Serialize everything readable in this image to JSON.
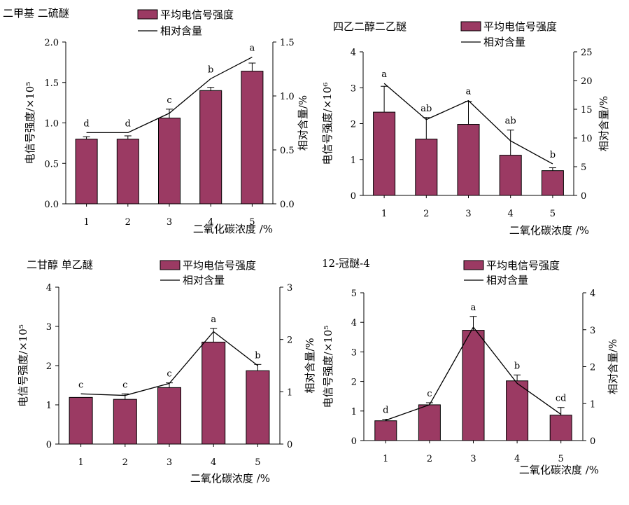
{
  "legend_bar_label": "平均电信号强度",
  "legend_line_label": "相对含量",
  "colors": {
    "bar": "#9b3a63",
    "line": "#000000"
  },
  "chart_data": [
    {
      "type": "bar",
      "title": "二甲基 二硫醚",
      "categories": [
        "1",
        "2",
        "3",
        "4",
        "5"
      ],
      "ylabel": "电信号强度/×10⁵",
      "y2label": "相对含量/%",
      "xlabel": "二氧化碳浓度 /%",
      "ylim": [
        0,
        2.0
      ],
      "yticks": [
        0,
        0.5,
        1.0,
        1.5,
        2.0
      ],
      "ytick_labels": [
        "0.0",
        "0.5",
        "1.0",
        "1.5",
        "2.0"
      ],
      "y2lim": [
        0,
        1.5
      ],
      "y2ticks": [
        0,
        0.5,
        1.0,
        1.5
      ],
      "y2tick_labels": [
        "0.0",
        "0.5",
        "1.0",
        "1.5"
      ],
      "series": [
        {
          "kind": "bar",
          "axis": "left",
          "values": [
            0.8,
            0.8,
            1.06,
            1.4,
            1.64
          ],
          "errors": [
            0.03,
            0.04,
            0.11,
            0.04,
            0.1
          ]
        },
        {
          "kind": "line",
          "axis": "right",
          "values": [
            0.66,
            0.66,
            0.84,
            1.16,
            1.36
          ]
        }
      ],
      "significance": [
        "d",
        "d",
        "c",
        "b",
        "a"
      ]
    },
    {
      "type": "bar",
      "title": "四乙二醇二乙醚",
      "categories": [
        "1",
        "2",
        "3",
        "4",
        "5"
      ],
      "ylabel": "电信号强度/×10⁶",
      "y2label": "相对含量/%",
      "xlabel": "二氧化碳浓度 /%",
      "ylim": [
        0,
        4
      ],
      "yticks": [
        0,
        1,
        2,
        3,
        4
      ],
      "ytick_labels": [
        "0",
        "1",
        "2",
        "3",
        "4"
      ],
      "y2lim": [
        0,
        25
      ],
      "y2ticks": [
        0,
        5,
        10,
        15,
        20,
        25
      ],
      "y2tick_labels": [
        "0",
        "5",
        "10",
        "15",
        "20",
        "25"
      ],
      "series": [
        {
          "kind": "bar",
          "axis": "left",
          "values": [
            2.32,
            1.57,
            1.98,
            1.12,
            0.69
          ],
          "errors": [
            0.72,
            0.6,
            0.64,
            0.7,
            0.08
          ]
        },
        {
          "kind": "line",
          "axis": "right",
          "values": [
            19.5,
            13.2,
            16.5,
            9.5,
            5.5
          ]
        }
      ],
      "significance": [
        "a",
        "ab",
        "a",
        "ab",
        "b"
      ]
    },
    {
      "type": "bar",
      "title": "二甘醇 单乙醚",
      "categories": [
        "1",
        "2",
        "3",
        "4",
        "5"
      ],
      "ylabel": "电信号强度/×10⁵",
      "y2label": "相对含量/%",
      "xlabel": "二氧化碳浓度 /%",
      "ylim": [
        0,
        4
      ],
      "yticks": [
        0,
        1,
        2,
        3,
        4
      ],
      "ytick_labels": [
        "0",
        "1",
        "2",
        "3",
        "4"
      ],
      "y2lim": [
        0,
        3
      ],
      "y2ticks": [
        0,
        1,
        2,
        3
      ],
      "y2tick_labels": [
        "0",
        "1",
        "2",
        "3"
      ],
      "series": [
        {
          "kind": "bar",
          "axis": "left",
          "values": [
            1.19,
            1.14,
            1.44,
            2.6,
            1.87
          ],
          "errors": [
            0.0,
            0.14,
            0.12,
            0.35,
            0.16
          ]
        },
        {
          "kind": "line",
          "axis": "right",
          "values": [
            0.96,
            0.93,
            1.16,
            2.15,
            1.5
          ]
        }
      ],
      "significance": [
        "c",
        "c",
        "c",
        "a",
        "b"
      ]
    },
    {
      "type": "bar",
      "title": "12-冠醚-4",
      "categories": [
        "1",
        "2",
        "3",
        "4",
        "5"
      ],
      "ylabel": "电信号强度/×10⁵",
      "y2label": "相对含量/%",
      "xlabel": "二氧化碳浓度 /%",
      "ylim": [
        0,
        5
      ],
      "yticks": [
        0,
        1,
        2,
        3,
        4,
        5
      ],
      "ytick_labels": [
        "0",
        "1",
        "2",
        "3",
        "4",
        "5"
      ],
      "y2lim": [
        0,
        4
      ],
      "y2ticks": [
        0,
        1,
        2,
        3,
        4
      ],
      "y2tick_labels": [
        "0",
        "1",
        "2",
        "3",
        "4"
      ],
      "series": [
        {
          "kind": "bar",
          "axis": "left",
          "values": [
            0.67,
            1.21,
            3.73,
            2.02,
            0.86
          ],
          "errors": [
            0.05,
            0.07,
            0.47,
            0.2,
            0.26
          ]
        },
        {
          "kind": "line",
          "axis": "right",
          "values": [
            0.55,
            0.97,
            3.07,
            1.55,
            0.71
          ]
        }
      ],
      "significance": [
        "d",
        "c",
        "a",
        "b",
        "cd"
      ]
    }
  ]
}
